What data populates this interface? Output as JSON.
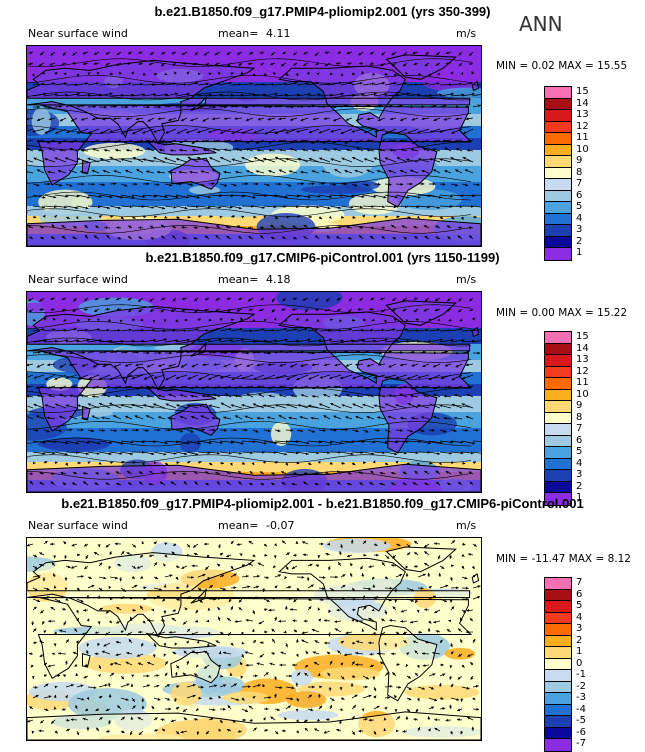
{
  "season": "ANN",
  "panels": [
    {
      "title": "b.e21.B1850.f09_g17.PMIP4-pliomip2.001 (yrs 350-399)",
      "variable": "Near surface wind",
      "mean_label": "mean=",
      "mean_value": "4.11",
      "units": "m/s",
      "minmax": "MIN =    0.02 MAX =   15.55",
      "min": 0.02,
      "max": 15.55,
      "colorbar_labels": [
        "15",
        "14",
        "13",
        "12",
        "11",
        "10",
        "9",
        "8",
        "7",
        "6",
        "5",
        "4",
        "3",
        "2",
        "1"
      ],
      "colors": [
        "#f46fb4",
        "#a50f15",
        "#d7191c",
        "#f03b20",
        "#fd6a00",
        "#fdae20",
        "#fed976",
        "#ffffcc",
        "#c6dbef",
        "#9ecae1",
        "#4aa3df",
        "#2171d5",
        "#1c3fb3",
        "#0a0a9a",
        "#8b2be2"
      ]
    },
    {
      "title": "b.e21.B1850.f09_g17.CMIP6-piControl.001 (yrs 1150-1199)",
      "variable": "Near surface wind",
      "mean_label": "mean=",
      "mean_value": "4.18",
      "units": "m/s",
      "minmax": "MIN =    0.00 MAX =   15.22",
      "min": 0.0,
      "max": 15.22,
      "colorbar_labels": [
        "15",
        "14",
        "13",
        "12",
        "11",
        "10",
        "9",
        "8",
        "7",
        "6",
        "5",
        "4",
        "3",
        "2",
        "1"
      ],
      "colors": [
        "#f46fb4",
        "#a50f15",
        "#d7191c",
        "#f03b20",
        "#fd6a00",
        "#fdae20",
        "#fed976",
        "#ffffcc",
        "#c6dbef",
        "#9ecae1",
        "#4aa3df",
        "#2171d5",
        "#1c3fb3",
        "#0a0a9a",
        "#8b2be2"
      ]
    },
    {
      "title": "b.e21.B1850.f09_g17.PMIP4-pliomip2.001 - b.e21.B1850.f09_g17.CMIP6-piControl.001",
      "variable": "Near surface wind",
      "mean_label": "mean=",
      "mean_value": "-0.07",
      "units": "m/s",
      "minmax": "MIN = -11.47 MAX =    8.12",
      "min": -11.47,
      "max": 8.12,
      "colorbar_labels": [
        "7",
        "6",
        "5",
        "4",
        "3",
        "2",
        "1",
        "0",
        "-1",
        "-2",
        "-3",
        "-4",
        "-5",
        "-6",
        "-7"
      ],
      "colors": [
        "#f46fb4",
        "#a50f15",
        "#d7191c",
        "#f03b20",
        "#fd6a00",
        "#fdae20",
        "#fed976",
        "#ffffcc",
        "#c6dbef",
        "#9ecae1",
        "#4aa3df",
        "#2171d5",
        "#1c3fb3",
        "#0a0a9a",
        "#8b2be2"
      ]
    }
  ]
}
